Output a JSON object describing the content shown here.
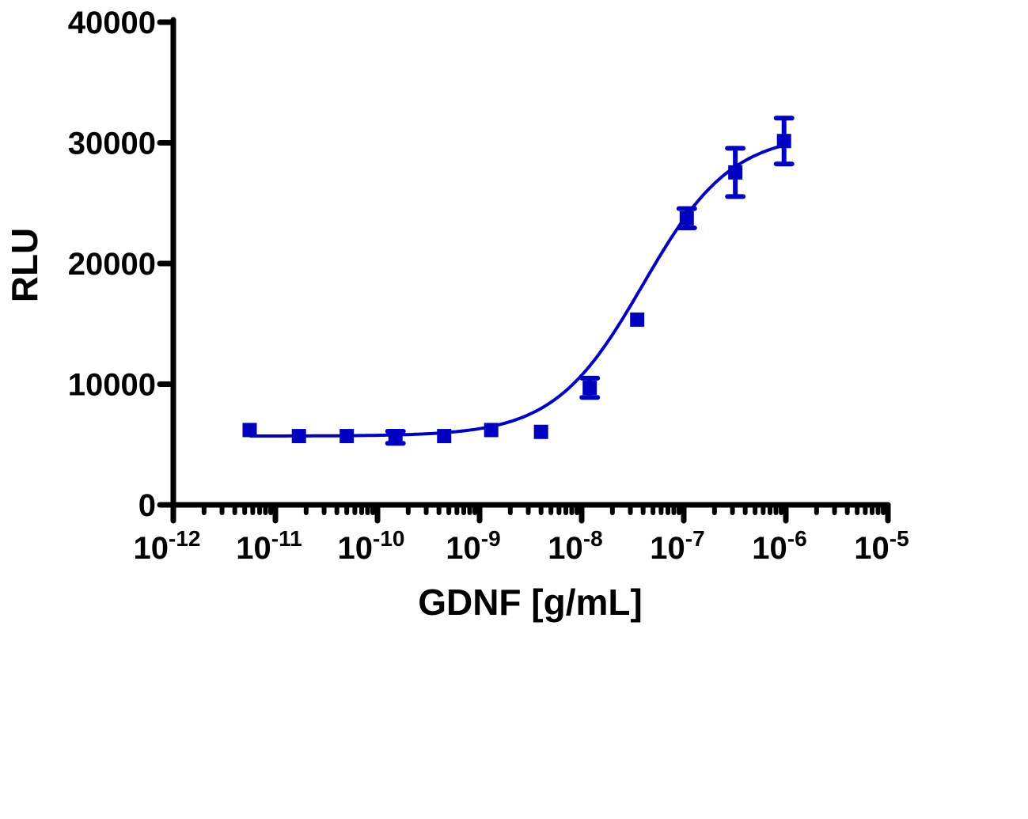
{
  "chart_data": {
    "type": "scatter",
    "title": "",
    "xlabel": "GDNF [g/mL]",
    "ylabel": "RLU",
    "xscale": "log",
    "xlim": [
      1e-12,
      1e-05
    ],
    "ylim": [
      0,
      40000
    ],
    "grid": false,
    "legend": null,
    "color": "#0000C0",
    "y_ticks": [
      0,
      10000,
      20000,
      30000,
      40000
    ],
    "y_tick_labels": [
      "0",
      "10000",
      "20000",
      "30000",
      "40000"
    ],
    "x_ticks": [
      -12,
      -11,
      -10,
      -9,
      -8,
      -7,
      -6,
      -5
    ],
    "x_tick_labels": [
      {
        "base": "10",
        "exp": "-12"
      },
      {
        "base": "10",
        "exp": "-11"
      },
      {
        "base": "10",
        "exp": "-10"
      },
      {
        "base": "10",
        "exp": "-9"
      },
      {
        "base": "10",
        "exp": "-8"
      },
      {
        "base": "10",
        "exp": "-7"
      },
      {
        "base": "10",
        "exp": "-6"
      },
      {
        "base": "10",
        "exp": "-5"
      }
    ],
    "series": [
      {
        "name": "GDNF",
        "marker": "square",
        "x": [
          5.6e-12,
          1.7e-11,
          5e-11,
          1.5e-10,
          4.5e-10,
          1.3e-09,
          4e-09,
          1.2e-08,
          3.5e-08,
          1.07e-07,
          3.2e-07,
          9.6e-07
        ],
        "y": [
          6200,
          5700,
          5700,
          5600,
          5700,
          6200,
          6050,
          9700,
          15350,
          23750,
          27550,
          30150
        ],
        "error": [
          0,
          0,
          0,
          500,
          0,
          0,
          0,
          800,
          0,
          800,
          2000,
          1900
        ]
      }
    ],
    "fit": {
      "type": "sigmoidal dose-response",
      "bottom": 5700,
      "top": 30800,
      "log_ec50": -7.4,
      "hill": 1.0
    }
  }
}
